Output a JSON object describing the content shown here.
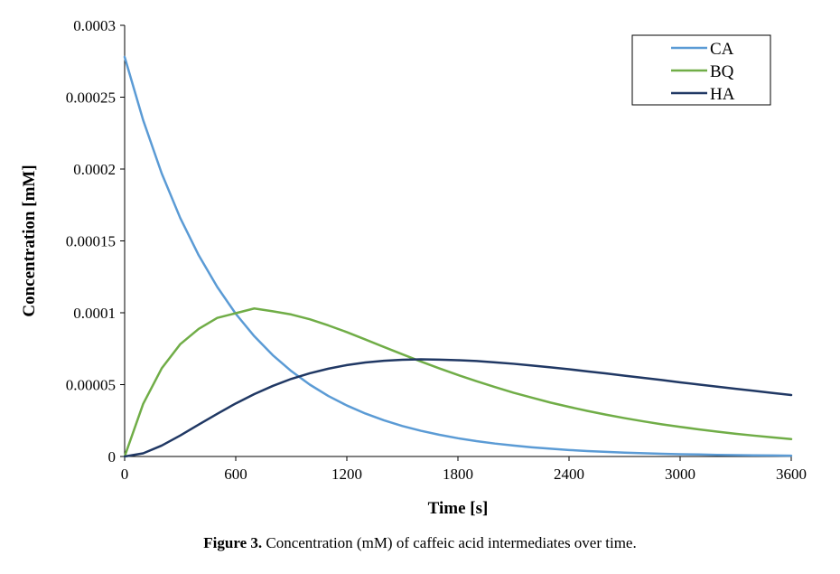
{
  "chart_data": {
    "type": "line",
    "xlabel": "Time [s]",
    "ylabel": "Concentration [mM]",
    "xlim": [
      0,
      3600
    ],
    "ylim": [
      0,
      0.0003
    ],
    "x_ticks": [
      "0",
      "600",
      "1200",
      "1800",
      "2400",
      "3000",
      "3600"
    ],
    "x_tick_values": [
      0,
      600,
      1200,
      1800,
      2400,
      3000,
      3600
    ],
    "y_ticks": [
      "0",
      "0.00005",
      "0.0001",
      "0.00015",
      "0.0002",
      "0.00025",
      "0.0003"
    ],
    "y_tick_values": [
      0,
      5e-05,
      0.0001,
      0.00015,
      0.0002,
      0.00025,
      0.0003
    ],
    "grid": false,
    "legend_position": "top-right",
    "x": [
      0,
      100,
      200,
      300,
      400,
      500,
      600,
      700,
      800,
      900,
      1000,
      1100,
      1200,
      1300,
      1400,
      1500,
      1600,
      1700,
      1800,
      1900,
      2000,
      2100,
      2200,
      2300,
      2400,
      2500,
      2600,
      2700,
      2800,
      2900,
      3000,
      3100,
      3200,
      3300,
      3400,
      3500,
      3600
    ],
    "series": [
      {
        "name": "CA",
        "color": "#5b9bd5",
        "values": [
          0.000278,
          0.000234,
          0.000197,
          0.000166,
          0.00014,
          0.000118,
          9.93e-05,
          8.37e-05,
          7.05e-05,
          5.94e-05,
          5e-05,
          4.21e-05,
          3.55e-05,
          2.99e-05,
          2.52e-05,
          2.12e-05,
          1.79e-05,
          1.51e-05,
          1.27e-05,
          1.07e-05,
          9e-06,
          7.6e-06,
          6.4e-06,
          5.4e-06,
          4.5e-06,
          3.8e-06,
          3.2e-06,
          2.7e-06,
          2.3e-06,
          1.9e-06,
          1.6e-06,
          1.4e-06,
          1.1e-06,
          9.6e-07,
          8.1e-07,
          6.8e-07,
          5.8e-07
        ]
      },
      {
        "name": "BQ",
        "color": "#70ad47",
        "values": [
          0,
          3.66e-05,
          6.13e-05,
          7.81e-05,
          8.88e-05,
          9.64e-05,
          9.97e-05,
          0.000103,
          0.000101,
          9.88e-05,
          9.55e-05,
          9.12e-05,
          8.65e-05,
          8.14e-05,
          7.62e-05,
          7.11e-05,
          6.61e-05,
          6.13e-05,
          5.67e-05,
          5.24e-05,
          4.83e-05,
          4.44e-05,
          4.09e-05,
          3.75e-05,
          3.45e-05,
          3.17e-05,
          2.91e-05,
          2.67e-05,
          2.45e-05,
          2.24e-05,
          2.06e-05,
          1.89e-05,
          1.73e-05,
          1.58e-05,
          1.45e-05,
          1.33e-05,
          1.21e-05
        ]
      },
      {
        "name": "HA",
        "color": "#203864",
        "values": [
          0,
          2.2e-06,
          7.6e-06,
          1.46e-05,
          2.22e-05,
          2.97e-05,
          3.69e-05,
          4.34e-05,
          4.91e-05,
          5.4e-05,
          5.79e-05,
          6.11e-05,
          6.36e-05,
          6.54e-05,
          6.66e-05,
          6.73e-05,
          6.76e-05,
          6.74e-05,
          6.7e-05,
          6.64e-05,
          6.55e-05,
          6.45e-05,
          6.33e-05,
          6.2e-05,
          6.07e-05,
          5.92e-05,
          5.78e-05,
          5.62e-05,
          5.47e-05,
          5.32e-05,
          5.16e-05,
          5.01e-05,
          4.86e-05,
          4.71e-05,
          4.57e-05,
          4.42e-05,
          4.28e-05
        ]
      }
    ]
  },
  "caption": {
    "label": "Figure 3.",
    "text": " Concentration (mM) of caffeic acid intermediates over time."
  }
}
